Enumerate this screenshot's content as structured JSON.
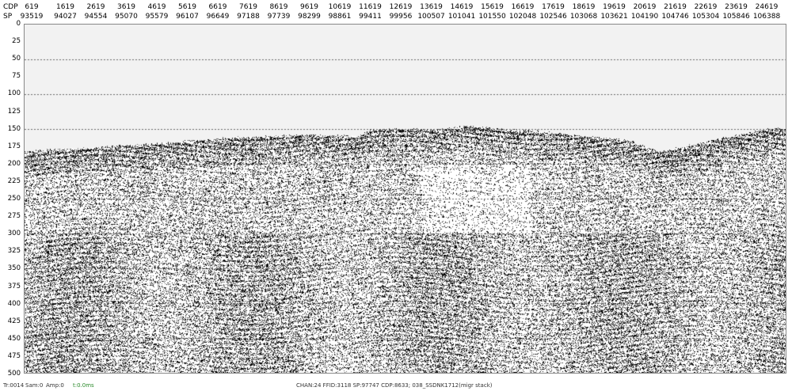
{
  "header": {
    "cdp_label": "CDP",
    "sp_label": "SP",
    "cdp": [
      "619",
      "1619",
      "2619",
      "3619",
      "4619",
      "5619",
      "6619",
      "7619",
      "8619",
      "9619",
      "10619",
      "11619",
      "12619",
      "13619",
      "14619",
      "15619",
      "16619",
      "17619",
      "18619",
      "19619",
      "20619",
      "21619",
      "22619",
      "23619",
      "24619"
    ],
    "sp": [
      "93519",
      "94027",
      "94554",
      "95070",
      "95579",
      "96107",
      "96649",
      "97188",
      "97739",
      "98299",
      "98861",
      "99411",
      "99956",
      "100507",
      "101041",
      "101550",
      "102048",
      "102546",
      "103068",
      "103621",
      "104190",
      "104746",
      "105304",
      "105846",
      "106388"
    ]
  },
  "time_axis": {
    "ticks": [
      "0",
      "25",
      "50",
      "75",
      "100",
      "125",
      "150",
      "175",
      "200",
      "225",
      "250",
      "275",
      "300",
      "325",
      "350",
      "375",
      "400",
      "425",
      "450",
      "475",
      "500"
    ],
    "range": [
      0,
      500
    ],
    "gridlines_every": 50
  },
  "status": {
    "trace": "Tr:0014",
    "sample": "Sam:0",
    "amplitude": "Amp:0",
    "time": "t:0.0ms",
    "info": "CHAN:24 FFID:3118 SP:97747 CDP:8633; 038_SSDNK1712(migr stack)"
  },
  "colors": {
    "background": "#f2f2f2",
    "trace": "#000000",
    "time_readout": "#2a8a2a"
  }
}
